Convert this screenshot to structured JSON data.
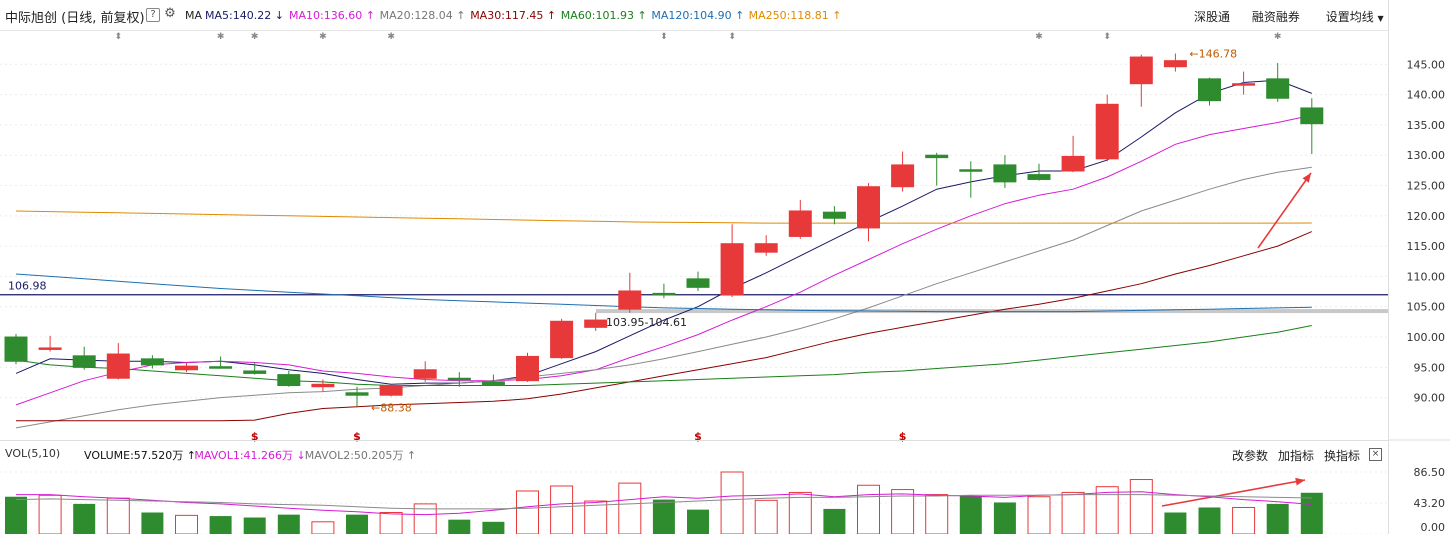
{
  "header": {
    "stock_name": "中际旭创",
    "mode": "(日线, 前复权)",
    "ma_label": "MA",
    "indicators": [
      {
        "key": "ma5",
        "text": "MA5:140.22",
        "arrow": "↓",
        "color": "#1a1a66"
      },
      {
        "key": "ma10",
        "text": "MA10:136.60",
        "arrow": "↑",
        "color": "#d61bd6"
      },
      {
        "key": "ma20",
        "text": "MA20:128.04",
        "arrow": "↑",
        "color": "#777777"
      },
      {
        "key": "ma30",
        "text": "MA30:117.45",
        "arrow": "↑",
        "color": "#8b0000"
      },
      {
        "key": "ma60",
        "text": "MA60:101.93",
        "arrow": "↑",
        "color": "#1a7f1a"
      },
      {
        "key": "ma120",
        "text": "MA120:104.90",
        "arrow": "↑",
        "color": "#1f6fb0"
      },
      {
        "key": "ma250",
        "text": "MA250:118.81",
        "arrow": "↑",
        "color": "#e08a00"
      }
    ],
    "tools": [
      "深股通",
      "融资融券",
      "设置均线"
    ]
  },
  "volume_header": {
    "label": "VOL(5,10)",
    "indicators": [
      {
        "key": "volume",
        "text": "VOLUME:57.520万",
        "arrow": "↑",
        "color": "#111111"
      },
      {
        "key": "mavol1",
        "text": "MAVOL1:41.266万",
        "arrow": "↓",
        "color": "#d61bd6"
      },
      {
        "key": "mavol2",
        "text": "MAVOL2:50.205万",
        "arrow": "↑",
        "color": "#777777"
      }
    ],
    "tools": [
      "改参数",
      "加指标",
      "换指标"
    ],
    "close": "×"
  },
  "chart_data": [
    {
      "type": "candlestick",
      "ylim": [
        84,
        150
      ],
      "y_ticks": [
        "145.00",
        "140.00",
        "135.00",
        "130.00",
        "125.00",
        "120.00",
        "115.00",
        "110.00",
        "105.00",
        "100.00",
        "95.00",
        "90.00"
      ],
      "candles": [
        {
          "o": 96.0,
          "h": 100.5,
          "l": 95.5,
          "c": 100.0,
          "up": false
        },
        {
          "o": 98.2,
          "h": 100.2,
          "l": 97.6,
          "c": 98.0,
          "up": true
        },
        {
          "o": 96.9,
          "h": 98.4,
          "l": 94.6,
          "c": 95.0,
          "up": false
        },
        {
          "o": 93.2,
          "h": 99.0,
          "l": 93.0,
          "c": 97.2,
          "up": true
        },
        {
          "o": 96.4,
          "h": 97.0,
          "l": 94.8,
          "c": 95.4,
          "up": false
        },
        {
          "o": 94.6,
          "h": 95.8,
          "l": 94.2,
          "c": 95.2,
          "up": true
        },
        {
          "o": 95.1,
          "h": 96.8,
          "l": 94.8,
          "c": 95.0,
          "up": false
        },
        {
          "o": 94.4,
          "h": 95.8,
          "l": 93.8,
          "c": 94.0,
          "up": false
        },
        {
          "o": 93.8,
          "h": 94.4,
          "l": 91.8,
          "c": 92.0,
          "up": false
        },
        {
          "o": 91.8,
          "h": 93.0,
          "l": 91.0,
          "c": 92.2,
          "up": true
        },
        {
          "o": 90.8,
          "h": 91.8,
          "l": 88.38,
          "c": 90.4,
          "up": false
        },
        {
          "o": 90.4,
          "h": 92.2,
          "l": 90.2,
          "c": 92.0,
          "up": true
        },
        {
          "o": 93.2,
          "h": 96.0,
          "l": 92.6,
          "c": 94.6,
          "up": true
        },
        {
          "o": 93.2,
          "h": 94.2,
          "l": 91.8,
          "c": 93.2,
          "up": false
        },
        {
          "o": 92.6,
          "h": 93.8,
          "l": 92.0,
          "c": 92.0,
          "up": false
        },
        {
          "o": 92.8,
          "h": 97.4,
          "l": 92.6,
          "c": 96.8,
          "up": true
        },
        {
          "o": 96.6,
          "h": 103.0,
          "l": 96.4,
          "c": 102.6,
          "up": true
        },
        {
          "o": 101.6,
          "h": 104.0,
          "l": 101.0,
          "c": 102.8,
          "up": true
        },
        {
          "o": 104.6,
          "h": 110.6,
          "l": 104.0,
          "c": 107.6,
          "up": true
        },
        {
          "o": 107.2,
          "h": 108.8,
          "l": 106.4,
          "c": 107.0,
          "up": false
        },
        {
          "o": 109.6,
          "h": 110.8,
          "l": 107.6,
          "c": 108.2,
          "up": false
        },
        {
          "o": 107.0,
          "h": 118.6,
          "l": 106.6,
          "c": 115.4,
          "up": true
        },
        {
          "o": 114.0,
          "h": 116.8,
          "l": 113.4,
          "c": 115.4,
          "up": true
        },
        {
          "o": 116.6,
          "h": 122.6,
          "l": 116.2,
          "c": 120.8,
          "up": true
        },
        {
          "o": 120.6,
          "h": 121.6,
          "l": 118.6,
          "c": 119.6,
          "up": false
        },
        {
          "o": 118.0,
          "h": 125.4,
          "l": 115.8,
          "c": 124.8,
          "up": true
        },
        {
          "o": 124.8,
          "h": 130.6,
          "l": 124.0,
          "c": 128.4,
          "up": true
        },
        {
          "o": 130.0,
          "h": 130.4,
          "l": 125.0,
          "c": 129.6,
          "up": false
        },
        {
          "o": 127.6,
          "h": 129.0,
          "l": 123.0,
          "c": 127.4,
          "up": false
        },
        {
          "o": 128.4,
          "h": 130.0,
          "l": 124.6,
          "c": 125.6,
          "up": false
        },
        {
          "o": 126.8,
          "h": 128.6,
          "l": 125.8,
          "c": 126.0,
          "up": false
        },
        {
          "o": 127.4,
          "h": 133.2,
          "l": 127.2,
          "c": 129.8,
          "up": true
        },
        {
          "o": 129.4,
          "h": 140.0,
          "l": 129.0,
          "c": 138.4,
          "up": true
        },
        {
          "o": 141.8,
          "h": 146.6,
          "l": 138.0,
          "c": 146.2,
          "up": true
        },
        {
          "o": 144.6,
          "h": 146.78,
          "l": 143.8,
          "c": 145.6,
          "up": true
        },
        {
          "o": 142.6,
          "h": 142.8,
          "l": 138.2,
          "c": 139.0,
          "up": false
        },
        {
          "o": 141.8,
          "h": 143.8,
          "l": 140.0,
          "c": 141.6,
          "up": true
        },
        {
          "o": 142.6,
          "h": 145.2,
          "l": 138.8,
          "c": 139.4,
          "up": false
        },
        {
          "o": 137.8,
          "h": 139.4,
          "l": 130.2,
          "c": 135.2,
          "up": false
        }
      ],
      "ma_lines": [
        {
          "name": "MA5",
          "color": "#1a1a66",
          "values": [
            94.0,
            96.4,
            96.2,
            96.0,
            96.0,
            95.8,
            96.0,
            95.4,
            94.6,
            94.0,
            93.0,
            92.2,
            92.4,
            92.4,
            92.8,
            93.6,
            95.6,
            97.6,
            100.2,
            102.8,
            105.0,
            108.0,
            110.6,
            113.4,
            116.2,
            119.0,
            121.6,
            124.4,
            125.6,
            126.6,
            127.4,
            127.4,
            129.2,
            133.0,
            137.0,
            140.2,
            142.0,
            142.4,
            140.2
          ]
        },
        {
          "name": "MA10",
          "color": "#d61bd6",
          "values": [
            88.8,
            90.8,
            92.8,
            94.2,
            95.4,
            95.8,
            96.0,
            95.8,
            95.4,
            94.4,
            94.0,
            93.4,
            93.0,
            92.8,
            92.8,
            93.0,
            93.6,
            94.6,
            96.6,
            98.4,
            100.4,
            102.8,
            105.0,
            107.4,
            110.2,
            112.8,
            115.4,
            117.8,
            120.0,
            122.0,
            123.4,
            124.4,
            126.4,
            129.0,
            131.8,
            133.4,
            134.4,
            135.4,
            136.6
          ]
        },
        {
          "name": "MA20",
          "color": "#8a8a8a",
          "values": [
            85.0,
            86.0,
            87.0,
            88.0,
            88.8,
            89.4,
            90.0,
            90.4,
            90.8,
            91.0,
            91.4,
            91.6,
            92.0,
            92.4,
            92.8,
            93.4,
            94.0,
            94.6,
            95.4,
            96.4,
            97.6,
            98.8,
            100.0,
            101.4,
            103.0,
            104.8,
            106.8,
            108.8,
            110.6,
            112.4,
            114.2,
            116.0,
            118.4,
            120.8,
            122.6,
            124.4,
            126.0,
            127.2,
            128.0
          ]
        },
        {
          "name": "MA30",
          "color": "#8b0000",
          "values": [
            86.2,
            86.2,
            86.2,
            86.2,
            86.2,
            86.2,
            86.2,
            86.3,
            87.4,
            88.2,
            88.5,
            88.8,
            89.0,
            89.2,
            89.4,
            89.8,
            90.6,
            91.6,
            92.6,
            93.6,
            94.6,
            95.6,
            96.6,
            98.0,
            99.4,
            100.6,
            101.6,
            102.6,
            103.6,
            104.6,
            105.4,
            106.4,
            107.6,
            108.8,
            110.4,
            111.8,
            113.4,
            115.0,
            117.4
          ]
        },
        {
          "name": "MA60",
          "color": "#1a7f1a",
          "values": [
            96.2,
            95.4,
            95.0,
            94.8,
            94.4,
            94.0,
            93.6,
            93.2,
            92.8,
            92.6,
            92.2,
            92.0,
            92.0,
            92.0,
            92.0,
            92.0,
            92.2,
            92.4,
            92.6,
            92.8,
            93.0,
            93.2,
            93.4,
            93.6,
            93.8,
            94.2,
            94.4,
            94.8,
            95.2,
            95.6,
            96.2,
            96.8,
            97.4,
            98.0,
            98.6,
            99.2,
            100.0,
            100.8,
            101.9
          ]
        },
        {
          "name": "MA120",
          "color": "#1f6fb0",
          "values": [
            110.4,
            110.0,
            109.6,
            109.2,
            108.8,
            108.4,
            108.0,
            107.7,
            107.4,
            107.1,
            106.8,
            106.5,
            106.2,
            106.0,
            105.8,
            105.6,
            105.4,
            105.2,
            105.0,
            104.8,
            104.7,
            104.6,
            104.5,
            104.4,
            104.35,
            104.3,
            104.25,
            104.2,
            104.2,
            104.2,
            104.2,
            104.2,
            104.3,
            104.4,
            104.5,
            104.6,
            104.7,
            104.8,
            104.9
          ]
        },
        {
          "name": "MA250",
          "color": "#e08a00",
          "values": [
            120.8,
            120.7,
            120.6,
            120.5,
            120.4,
            120.3,
            120.2,
            120.1,
            120.0,
            119.9,
            119.8,
            119.7,
            119.6,
            119.5,
            119.4,
            119.3,
            119.2,
            119.1,
            119.0,
            118.95,
            118.9,
            118.85,
            118.8,
            118.8,
            118.8,
            118.8,
            118.8,
            118.8,
            118.8,
            118.8,
            118.8,
            118.8,
            118.8,
            118.8,
            118.8,
            118.8,
            118.8,
            118.8,
            118.81
          ]
        }
      ],
      "reference_line": {
        "value": 106.98,
        "label": "106.98",
        "color": "#1a1a66"
      },
      "gap_band": {
        "from": 103.95,
        "to": 104.61,
        "label": "103.95-104.61"
      },
      "annotations": [
        {
          "type": "high",
          "value": 146.78,
          "label": "146.78",
          "index": 34
        },
        {
          "type": "low",
          "value": 88.38,
          "label": "88.38",
          "index": 10
        }
      ],
      "event_markers_top": [
        {
          "index": 3,
          "symbol": "⬍"
        },
        {
          "index": 6,
          "symbol": "✱"
        },
        {
          "index": 7,
          "symbol": "✱"
        },
        {
          "index": 9,
          "symbol": "✱"
        },
        {
          "index": 11,
          "symbol": "✱"
        },
        {
          "index": 19,
          "symbol": "⬍"
        },
        {
          "index": 21,
          "symbol": "⬍"
        },
        {
          "index": 30,
          "symbol": "✱"
        },
        {
          "index": 32,
          "symbol": "⬍"
        },
        {
          "index": 37,
          "symbol": "✱"
        }
      ],
      "event_markers_bottom": [
        {
          "index": 7,
          "symbol": "$"
        },
        {
          "index": 10,
          "symbol": "$"
        },
        {
          "index": 20,
          "symbol": "$"
        },
        {
          "index": 26,
          "symbol": "$"
        }
      ],
      "colors": {
        "up": "#e8393a",
        "down": "#2e8b2e",
        "arrow": "#e8393a"
      }
    },
    {
      "type": "bar",
      "ylim": [
        0,
        86.5
      ],
      "y_ticks": [
        "86.50",
        "43.20",
        "0.00"
      ],
      "volumes": [
        {
          "v": 52,
          "up": false
        },
        {
          "v": 54,
          "up": true
        },
        {
          "v": 42,
          "up": false
        },
        {
          "v": 50,
          "up": true
        },
        {
          "v": 30,
          "up": false
        },
        {
          "v": 26,
          "up": true
        },
        {
          "v": 25,
          "up": false
        },
        {
          "v": 23,
          "up": false
        },
        {
          "v": 27,
          "up": false
        },
        {
          "v": 17,
          "up": true
        },
        {
          "v": 27,
          "up": false
        },
        {
          "v": 30,
          "up": true
        },
        {
          "v": 42,
          "up": true
        },
        {
          "v": 20,
          "up": false
        },
        {
          "v": 17,
          "up": false
        },
        {
          "v": 60,
          "up": true
        },
        {
          "v": 67,
          "up": true
        },
        {
          "v": 46,
          "up": true
        },
        {
          "v": 71,
          "up": true
        },
        {
          "v": 48,
          "up": false
        },
        {
          "v": 34,
          "up": false
        },
        {
          "v": 86.5,
          "up": true
        },
        {
          "v": 47,
          "up": true
        },
        {
          "v": 58,
          "up": true
        },
        {
          "v": 35,
          "up": false
        },
        {
          "v": 68,
          "up": true
        },
        {
          "v": 62,
          "up": true
        },
        {
          "v": 55,
          "up": true
        },
        {
          "v": 53,
          "up": false
        },
        {
          "v": 44,
          "up": false
        },
        {
          "v": 52,
          "up": true
        },
        {
          "v": 58,
          "up": true
        },
        {
          "v": 66,
          "up": true
        },
        {
          "v": 76,
          "up": true
        },
        {
          "v": 30,
          "up": false
        },
        {
          "v": 37,
          "up": false
        },
        {
          "v": 37,
          "up": true
        },
        {
          "v": 42,
          "up": false
        },
        {
          "v": 57.52,
          "up": false
        }
      ],
      "mavol1": [
        55,
        55,
        52,
        50,
        47,
        44,
        42,
        39,
        36,
        33,
        31,
        28,
        27,
        29,
        33,
        38,
        42,
        44,
        48,
        52,
        50,
        53,
        54,
        56,
        52,
        55,
        56,
        54,
        53,
        51,
        54,
        55,
        58,
        59,
        55,
        52,
        48,
        45,
        41.3
      ],
      "mavol2": [
        48,
        49,
        48,
        47,
        46,
        45,
        44,
        42,
        41,
        40,
        38,
        36,
        35,
        35,
        35,
        36,
        38,
        40,
        42,
        44,
        46,
        48,
        50,
        51,
        51,
        52,
        53,
        53,
        54,
        54,
        54,
        55,
        55,
        55,
        54,
        53,
        52,
        51,
        50.2
      ]
    }
  ]
}
